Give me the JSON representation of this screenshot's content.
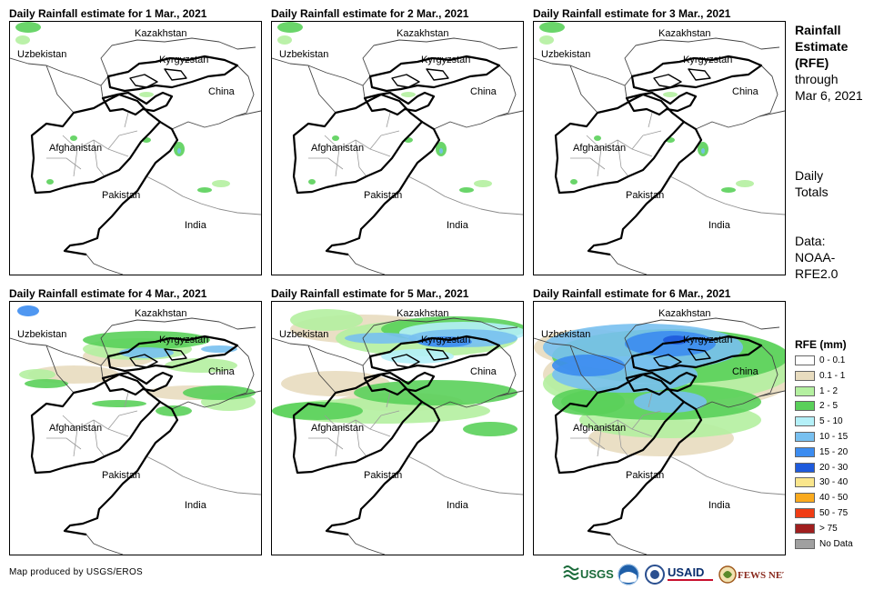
{
  "panels": [
    {
      "title": "Daily Rainfall estimate for 1 Mar., 2021",
      "intensity": 0
    },
    {
      "title": "Daily Rainfall estimate for 2 Mar., 2021",
      "intensity": 0
    },
    {
      "title": "Daily Rainfall estimate for 3 Mar., 2021",
      "intensity": 0
    },
    {
      "title": "Daily Rainfall estimate for 4 Mar., 2021",
      "intensity": 1
    },
    {
      "title": "Daily Rainfall estimate for 5 Mar., 2021",
      "intensity": 2
    },
    {
      "title": "Daily Rainfall estimate for 6 Mar., 2021",
      "intensity": 3
    }
  ],
  "map_labels": {
    "kazakhstan": "Kazakhstan",
    "uzbekistan": "Uzbekistan",
    "kyrgyzstan": "Kyrgyzstan",
    "china": "China",
    "afghanistan": "Afghanistan",
    "pakistan": "Pakistan",
    "india": "India"
  },
  "side": {
    "title_line1": "Rainfall",
    "title_line2": "Estimate",
    "title_line3": "(RFE)",
    "through_line1": "through",
    "through_line2": "Mar 6, 2021",
    "totals_line1": "Daily",
    "totals_line2": "Totals",
    "data_line1": "Data:",
    "data_line2": "NOAA-",
    "data_line3": "RFE2.0"
  },
  "legend": {
    "title": "RFE (mm)",
    "items": [
      {
        "label": "0 - 0.1",
        "color": "#ffffff"
      },
      {
        "label": "0.1 - 1",
        "color": "#e8dcbf"
      },
      {
        "label": "1 - 2",
        "color": "#b4f0a0"
      },
      {
        "label": "2 - 5",
        "color": "#5ad05a"
      },
      {
        "label": "5 - 10",
        "color": "#b4f0f8"
      },
      {
        "label": "10 - 15",
        "color": "#78c0f0"
      },
      {
        "label": "15 - 20",
        "color": "#3c8cf0"
      },
      {
        "label": "20 - 30",
        "color": "#1e5adc"
      },
      {
        "label": "30 - 40",
        "color": "#fae68c"
      },
      {
        "label": "40 - 50",
        "color": "#faaa1e"
      },
      {
        "label": "50 - 75",
        "color": "#f03c14"
      },
      {
        "label": "> 75",
        "color": "#a01e1e"
      },
      {
        "label": "No Data",
        "color": "#a0a0a0"
      }
    ]
  },
  "credit": "Map produced by USGS/EROS",
  "logos": {
    "usgs": "USGS",
    "usaid": "USAID",
    "fewsnet": "FEWS NET"
  }
}
